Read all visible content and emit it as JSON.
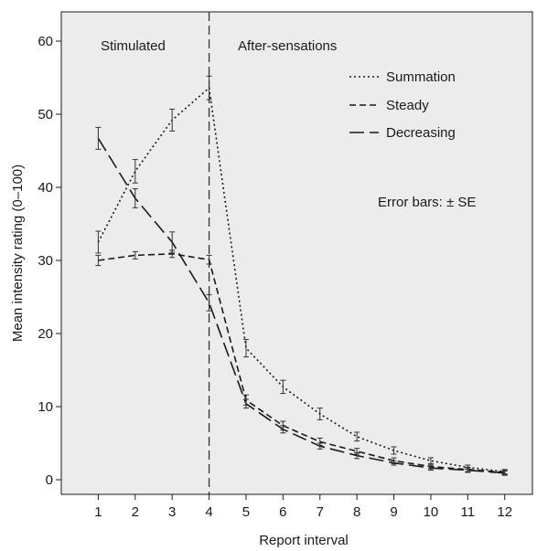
{
  "chart_data": {
    "type": "line",
    "xlabel": "Report interval",
    "ylabel": "Mean intensity rating (0–100)",
    "x": [
      1,
      2,
      3,
      4,
      5,
      6,
      7,
      8,
      9,
      10,
      11,
      12
    ],
    "xlim": [
      0,
      12.75
    ],
    "ylim": [
      -2,
      64
    ],
    "yticks": [
      0,
      10,
      20,
      30,
      40,
      50,
      60
    ],
    "xticks": [
      "1",
      "2",
      "3",
      "4",
      "5",
      "6",
      "7",
      "8",
      "9",
      "10",
      "11",
      "12"
    ],
    "divider_x": 4,
    "grid": false,
    "background": "#ececec",
    "region_labels": [
      "Stimulated",
      "After-sensations"
    ],
    "annotation": "Error bars: ± SE",
    "legend_position": "top-right",
    "series": [
      {
        "name": "Summation",
        "dash": "dotted",
        "values": [
          32.5,
          42.2,
          49.2,
          53.6,
          18.0,
          12.7,
          9.0,
          5.9,
          4.0,
          2.6,
          1.7,
          1.1
        ],
        "se": [
          1.5,
          1.6,
          1.5,
          1.6,
          1.2,
          0.9,
          0.8,
          0.6,
          0.5,
          0.4,
          0.3,
          0.3
        ]
      },
      {
        "name": "Steady",
        "dash": "dashed",
        "values": [
          30.0,
          30.7,
          30.9,
          30.1,
          10.9,
          7.4,
          5.2,
          3.9,
          2.6,
          1.8,
          1.4,
          1.0
        ],
        "se": [
          0.7,
          0.5,
          0.5,
          0.6,
          0.7,
          0.6,
          0.5,
          0.4,
          0.4,
          0.3,
          0.3,
          0.3
        ]
      },
      {
        "name": "Decreasing",
        "dash": "long-dashed",
        "values": [
          46.7,
          38.5,
          32.5,
          24.2,
          10.4,
          6.9,
          4.6,
          3.3,
          2.3,
          1.6,
          1.3,
          0.9
        ],
        "se": [
          1.5,
          1.3,
          1.4,
          1.1,
          0.6,
          0.5,
          0.4,
          0.4,
          0.3,
          0.3,
          0.3,
          0.3
        ]
      }
    ]
  }
}
